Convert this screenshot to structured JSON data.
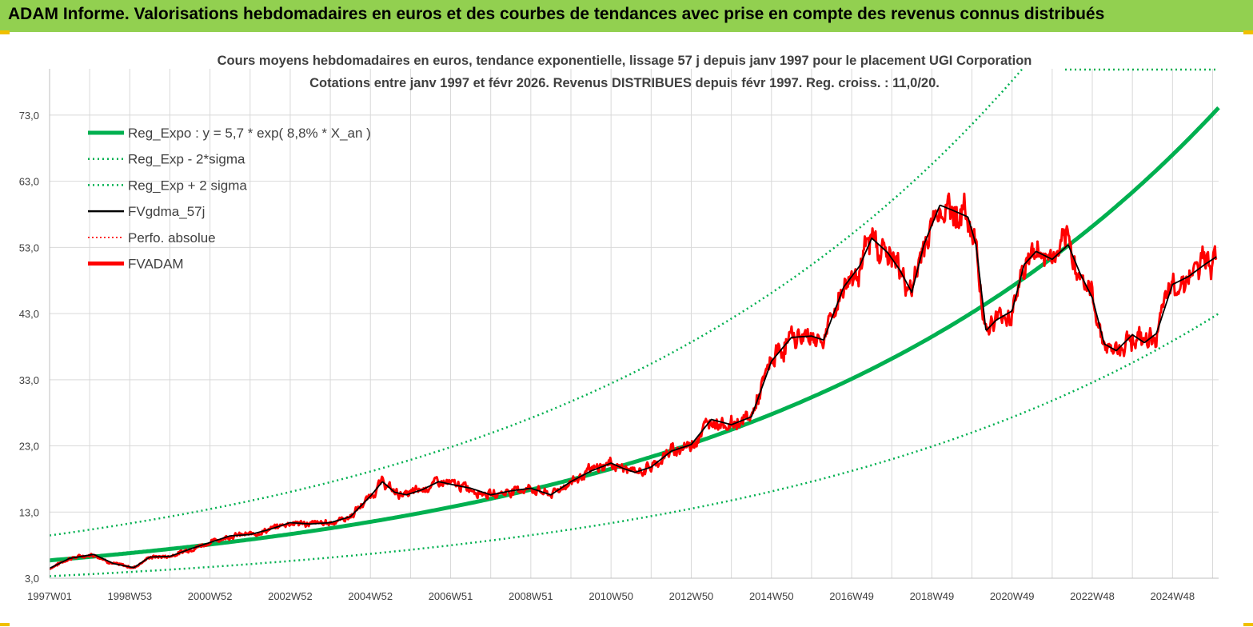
{
  "banner": {
    "title": "ADAM Informe. Valorisations hebdomadaires en euros et des courbes de tendances avec prise en compte des revenus connus distribués",
    "color": "#92d050"
  },
  "chart_data": {
    "type": "line",
    "title": "Cours moyens hebdomadaires en euros, tendance exponentielle, lissage 57 j depuis janv 1997 pour le placement UGI Corporation",
    "subtitle": "Cotations entre janv 1997 et févr 2026. Revenus DISTRIBUES depuis févr 1997. Reg. croiss. : 11,0/20.",
    "xlabel": "",
    "ylabel": "",
    "x_range": [
      1997.0,
      2026.15
    ],
    "ylim": [
      3,
      80
    ],
    "y_ticks": [
      3,
      13,
      23,
      33,
      43,
      53,
      63,
      73
    ],
    "y_tick_labels": [
      "3,0",
      "13,0",
      "23,0",
      "33,0",
      "43,0",
      "53,0",
      "63,0",
      "73,0"
    ],
    "x_ticks": [
      {
        "label": "1997W01",
        "year": 1997.0
      },
      {
        "label": "1998W53",
        "year": 1999.0
      },
      {
        "label": "2000W52",
        "year": 2001.0
      },
      {
        "label": "2002W52",
        "year": 2003.0
      },
      {
        "label": "2004W52",
        "year": 2005.0
      },
      {
        "label": "2006W51",
        "year": 2007.0
      },
      {
        "label": "2008W51",
        "year": 2009.0
      },
      {
        "label": "2010W50",
        "year": 2011.0
      },
      {
        "label": "2012W50",
        "year": 2013.0
      },
      {
        "label": "2014W50",
        "year": 2015.0
      },
      {
        "label": "2016W49",
        "year": 2017.0
      },
      {
        "label": "2018W49",
        "year": 2019.0
      },
      {
        "label": "2020W49",
        "year": 2021.0
      },
      {
        "label": "2022W48",
        "year": 2023.0
      },
      {
        "label": "2024W48",
        "year": 2025.0
      }
    ],
    "grid": true,
    "legend_position": "top-left",
    "regression": {
      "a": 5.7,
      "rate": 0.088,
      "lower_factor": 0.58,
      "upper_factor": 1.66
    },
    "series": [
      {
        "name": "Reg_Expo : y = 5,7 * exp( 8,8% *  X_an )",
        "color": "#00b050",
        "style": "solid-thick"
      },
      {
        "name": "Reg_Exp - 2*sigma",
        "color": "#00b050",
        "style": "dotted"
      },
      {
        "name": "Reg_Exp + 2 sigma",
        "color": "#00b050",
        "style": "dotted"
      },
      {
        "name": "FVgdma_57j",
        "color": "#000000",
        "style": "solid"
      },
      {
        "name": "Perfo. absolue",
        "color": "#ff0000",
        "style": "dotted"
      },
      {
        "name": "FVADAM",
        "color": "#ff0000",
        "style": "solid-thick"
      }
    ],
    "price_points": {
      "x": [
        1997.0,
        1997.5,
        1998.1,
        1998.6,
        1999.1,
        1999.5,
        2000.0,
        2000.5,
        2001.0,
        2001.5,
        2002.0,
        2002.5,
        2003.0,
        2003.5,
        2004.0,
        2004.5,
        2005.0,
        2005.3,
        2005.6,
        2005.9,
        2006.3,
        2006.7,
        2007.0,
        2007.5,
        2008.0,
        2008.5,
        2009.0,
        2009.5,
        2010.0,
        2010.5,
        2011.0,
        2011.3,
        2011.6,
        2012.0,
        2012.5,
        2013.0,
        2013.5,
        2014.0,
        2014.5,
        2015.0,
        2015.5,
        2016.0,
        2016.3,
        2016.8,
        2017.2,
        2017.5,
        2017.9,
        2018.2,
        2018.5,
        2018.8,
        2019.2,
        2019.6,
        2019.9,
        2020.1,
        2020.35,
        2020.6,
        2021.0,
        2021.3,
        2021.6,
        2022.0,
        2022.4,
        2022.7,
        2023.0,
        2023.3,
        2023.6,
        2024.0,
        2024.3,
        2024.6,
        2025.0,
        2025.4,
        2025.8,
        2026.1
      ],
      "y": [
        4.5,
        6.0,
        6.6,
        5.2,
        4.6,
        6.2,
        6.3,
        7.4,
        8.4,
        9.4,
        9.6,
        10.4,
        11.4,
        11.2,
        11.4,
        12.3,
        15.4,
        17.6,
        16.0,
        15.6,
        16.4,
        17.6,
        17.2,
        16.6,
        15.6,
        16.2,
        16.6,
        15.6,
        17.6,
        19.2,
        20.4,
        19.6,
        19.0,
        19.8,
        22.2,
        23.2,
        27.0,
        26.2,
        27.4,
        35.8,
        39.4,
        39.6,
        39.0,
        47.0,
        50.2,
        54.4,
        52.2,
        49.6,
        46.2,
        53.4,
        59.4,
        58.4,
        57.6,
        53.4,
        40.4,
        42.0,
        43.4,
        50.4,
        52.4,
        51.2,
        53.4,
        49.0,
        45.4,
        38.4,
        37.4,
        39.8,
        38.6,
        40.0,
        47.4,
        48.6,
        50.4,
        51.6
      ]
    }
  }
}
